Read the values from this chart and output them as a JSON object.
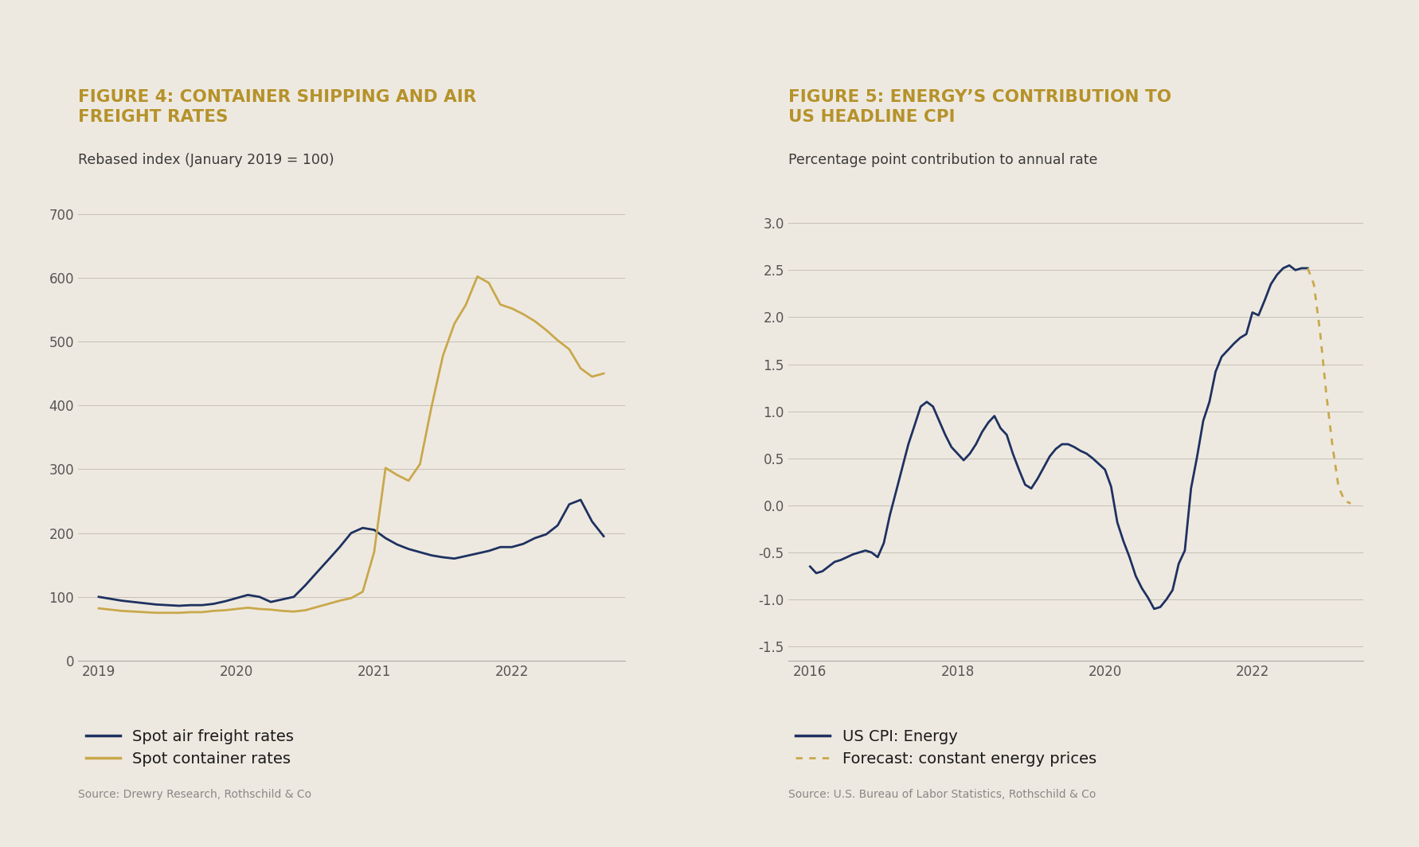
{
  "bg_color": "#eee9e0",
  "title1": "FIGURE 4: CONTAINER SHIPPING AND AIR\nFREIGHT RATES",
  "subtitle1": "Rebased index (January 2019 = 100)",
  "source1": "Source: Drewry Research, Rothschild & Co",
  "title2": "FIGURE 5: ENERGY’S CONTRIBUTION TO\nUS HEADLINE CPI",
  "subtitle2": "Percentage point contribution to annual rate",
  "source2": "Source: U.S. Bureau of Labor Statistics, Rothschild & Co",
  "title_color": "#b5922a",
  "subtitle_color": "#3a3a3a",
  "source_color": "#888888",
  "legend_color": "#1a1a1a",
  "navy": "#1e3161",
  "gold": "#c9a84c",
  "chart1": {
    "air_x": [
      2019.0,
      2019.083,
      2019.167,
      2019.25,
      2019.333,
      2019.417,
      2019.5,
      2019.583,
      2019.667,
      2019.75,
      2019.833,
      2019.917,
      2020.0,
      2020.083,
      2020.167,
      2020.25,
      2020.333,
      2020.417,
      2020.5,
      2020.583,
      2020.667,
      2020.75,
      2020.833,
      2020.917,
      2021.0,
      2021.083,
      2021.167,
      2021.25,
      2021.333,
      2021.417,
      2021.5,
      2021.583,
      2021.667,
      2021.75,
      2021.833,
      2021.917,
      2022.0,
      2022.083,
      2022.167,
      2022.25,
      2022.333,
      2022.417,
      2022.5,
      2022.583,
      2022.667
    ],
    "air_y": [
      100,
      97,
      94,
      92,
      90,
      88,
      87,
      86,
      87,
      87,
      89,
      93,
      98,
      103,
      100,
      92,
      96,
      100,
      118,
      138,
      158,
      178,
      200,
      208,
      205,
      192,
      182,
      175,
      170,
      165,
      162,
      160,
      164,
      168,
      172,
      178,
      178,
      183,
      192,
      198,
      212,
      245,
      252,
      218,
      195
    ],
    "container_x": [
      2019.0,
      2019.083,
      2019.167,
      2019.25,
      2019.333,
      2019.417,
      2019.5,
      2019.583,
      2019.667,
      2019.75,
      2019.833,
      2019.917,
      2020.0,
      2020.083,
      2020.167,
      2020.25,
      2020.333,
      2020.417,
      2020.5,
      2020.583,
      2020.667,
      2020.75,
      2020.833,
      2020.917,
      2021.0,
      2021.083,
      2021.167,
      2021.25,
      2021.333,
      2021.417,
      2021.5,
      2021.583,
      2021.667,
      2021.75,
      2021.833,
      2021.917,
      2022.0,
      2022.083,
      2022.167,
      2022.25,
      2022.333,
      2022.417,
      2022.5,
      2022.583,
      2022.667
    ],
    "container_y": [
      82,
      80,
      78,
      77,
      76,
      75,
      75,
      75,
      76,
      76,
      78,
      79,
      81,
      83,
      81,
      80,
      78,
      77,
      79,
      84,
      89,
      94,
      98,
      108,
      170,
      302,
      291,
      282,
      308,
      398,
      478,
      528,
      558,
      602,
      592,
      558,
      552,
      543,
      532,
      518,
      502,
      488,
      458,
      445,
      450
    ],
    "ylim": [
      0,
      730
    ],
    "yticks": [
      0,
      100,
      200,
      300,
      400,
      500,
      600,
      700
    ],
    "xlim": [
      2018.85,
      2022.82
    ],
    "xticks": [
      2019,
      2020,
      2021,
      2022
    ]
  },
  "chart2": {
    "cpi_x": [
      2016.0,
      2016.083,
      2016.167,
      2016.25,
      2016.333,
      2016.417,
      2016.5,
      2016.583,
      2016.667,
      2016.75,
      2016.833,
      2016.917,
      2017.0,
      2017.083,
      2017.167,
      2017.25,
      2017.333,
      2017.417,
      2017.5,
      2017.583,
      2017.667,
      2017.75,
      2017.833,
      2017.917,
      2018.0,
      2018.083,
      2018.167,
      2018.25,
      2018.333,
      2018.417,
      2018.5,
      2018.583,
      2018.667,
      2018.75,
      2018.833,
      2018.917,
      2019.0,
      2019.083,
      2019.167,
      2019.25,
      2019.333,
      2019.417,
      2019.5,
      2019.583,
      2019.667,
      2019.75,
      2019.833,
      2019.917,
      2020.0,
      2020.083,
      2020.167,
      2020.25,
      2020.333,
      2020.417,
      2020.5,
      2020.583,
      2020.667,
      2020.75,
      2020.833,
      2020.917,
      2021.0,
      2021.083,
      2021.167,
      2021.25,
      2021.333,
      2021.417,
      2021.5,
      2021.583,
      2021.667,
      2021.75,
      2021.833,
      2021.917,
      2022.0,
      2022.083,
      2022.167,
      2022.25,
      2022.333,
      2022.417,
      2022.5,
      2022.583,
      2022.667,
      2022.75
    ],
    "cpi_y": [
      -0.65,
      -0.72,
      -0.7,
      -0.65,
      -0.6,
      -0.58,
      -0.55,
      -0.52,
      -0.5,
      -0.48,
      -0.5,
      -0.55,
      -0.4,
      -0.1,
      0.15,
      0.4,
      0.65,
      0.85,
      1.05,
      1.1,
      1.05,
      0.9,
      0.75,
      0.62,
      0.55,
      0.48,
      0.55,
      0.65,
      0.78,
      0.88,
      0.95,
      0.82,
      0.75,
      0.55,
      0.38,
      0.22,
      0.18,
      0.28,
      0.4,
      0.52,
      0.6,
      0.65,
      0.65,
      0.62,
      0.58,
      0.55,
      0.5,
      0.44,
      0.38,
      0.2,
      -0.18,
      -0.38,
      -0.55,
      -0.75,
      -0.88,
      -0.98,
      -1.1,
      -1.08,
      -1.0,
      -0.9,
      -0.62,
      -0.48,
      0.18,
      0.52,
      0.9,
      1.1,
      1.42,
      1.58,
      1.65,
      1.72,
      1.78,
      1.82,
      2.05,
      2.02,
      2.18,
      2.35,
      2.45,
      2.52,
      2.55,
      2.5,
      2.52,
      2.52
    ],
    "forecast_x": [
      2022.75,
      2022.833,
      2022.917,
      2023.0,
      2023.083,
      2023.167,
      2023.25,
      2023.333
    ],
    "forecast_y": [
      2.52,
      2.35,
      1.85,
      1.2,
      0.65,
      0.2,
      0.05,
      0.02
    ],
    "ylim": [
      -1.65,
      3.3
    ],
    "yticks": [
      -1.5,
      -1.0,
      -0.5,
      0.0,
      0.5,
      1.0,
      1.5,
      2.0,
      2.5,
      3.0
    ],
    "xlim": [
      2015.7,
      2023.5
    ],
    "xticks": [
      2016,
      2018,
      2020,
      2022
    ]
  }
}
